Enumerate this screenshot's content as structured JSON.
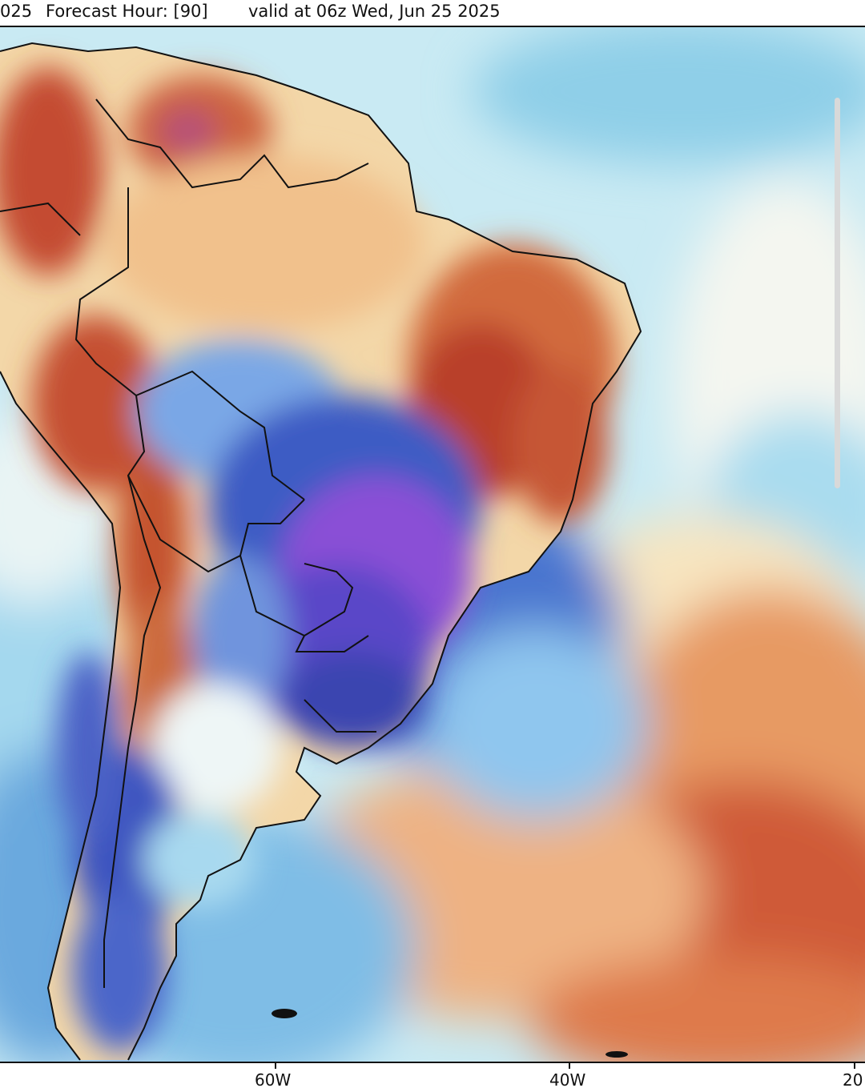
{
  "header": {
    "run_fragment": "025",
    "forecast_hour": "Forecast Hour: [90]",
    "valid": "valid at 06z Wed, Jun 25 2025"
  },
  "map": {
    "region": "South America",
    "x_ticks": [
      "60W",
      "40W",
      "20"
    ],
    "colors": {
      "warm_dark": "#b5362a",
      "warm": "#d9774a",
      "warm_light": "#f1bd86",
      "neutral": "#f7e8c6",
      "cool_light": "#9fd6ec",
      "cool": "#5c91d6",
      "cool_dark": "#3a4fb5",
      "very_cold": "#8b4fd4",
      "border": "#111111"
    }
  }
}
